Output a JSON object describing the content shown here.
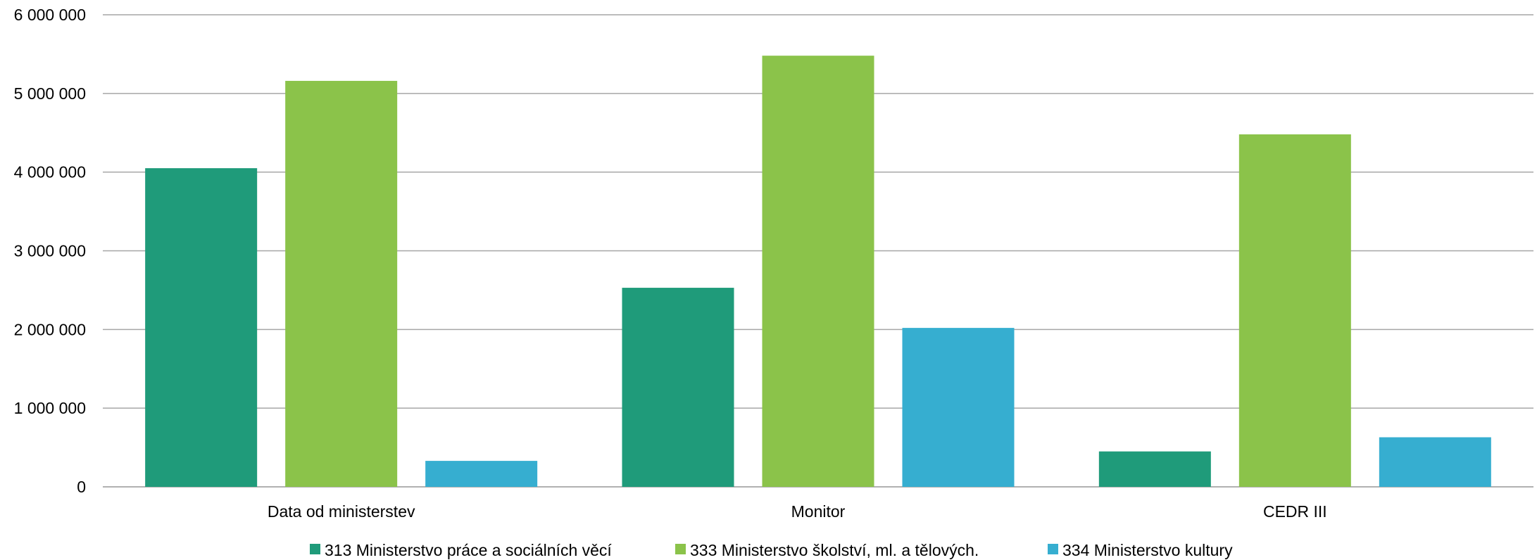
{
  "chart_data": {
    "type": "bar",
    "title": "",
    "xlabel": "",
    "ylabel": "",
    "categories": [
      "Data od ministerstev",
      "Monitor",
      "CEDR III"
    ],
    "series": [
      {
        "name": "313 Ministerstvo práce a sociálních věcí",
        "color": "#1f9b7a",
        "values": [
          4050000,
          2530000,
          450000
        ]
      },
      {
        "name": "333 Ministerstvo školství, ml. a tělových.",
        "color": "#8bc34a",
        "values": [
          5160000,
          5480000,
          4480000
        ]
      },
      {
        "name": "334 Ministerstvo kultury",
        "color": "#36aed0",
        "values": [
          330000,
          2020000,
          630000
        ]
      }
    ],
    "ylim": [
      0,
      6000000
    ],
    "yticks": [
      0,
      1000000,
      2000000,
      3000000,
      4000000,
      5000000,
      6000000
    ],
    "ytick_labels": [
      "0",
      "1 000 000",
      "2 000 000",
      "3 000 000",
      "4 000 000",
      "5 000 000",
      "6 000 000"
    ],
    "grid": true,
    "gridline_color": "#a6a6a6",
    "legend_position": "bottom"
  }
}
